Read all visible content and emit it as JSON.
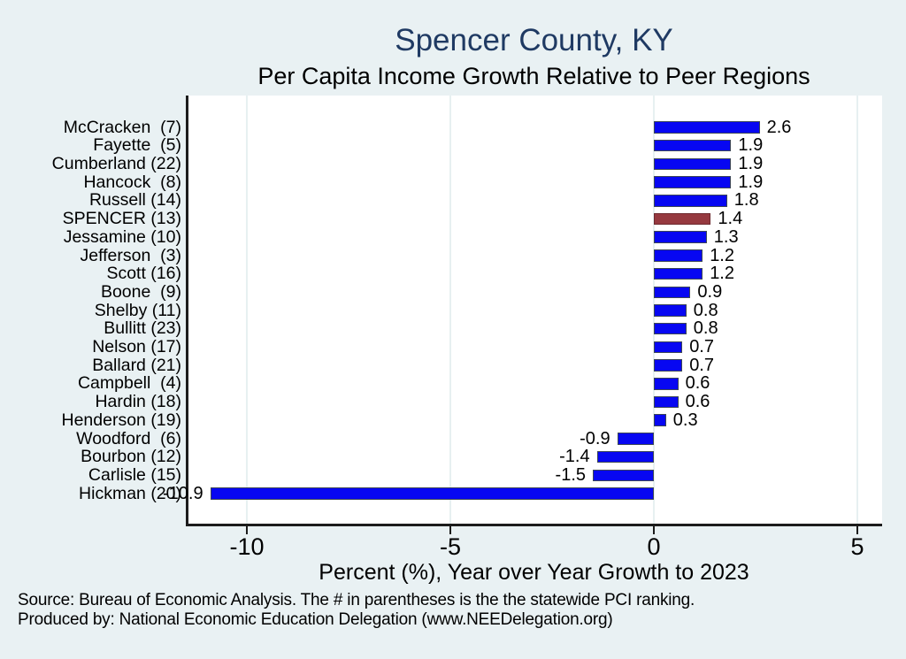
{
  "page": {
    "background_color": "#e9f1f3"
  },
  "header": {
    "title": "Spencer County, KY",
    "title_color": "#1f3a63",
    "subtitle": "Per Capita Income Growth Relative to Peer Regions"
  },
  "chart_data": {
    "type": "bar",
    "orientation": "horizontal",
    "title": "Spencer County, KY",
    "subtitle": "Per Capita Income Growth Relative to Peer Regions",
    "xlabel": "Percent (%), Year over Year Growth to 2023",
    "x_ticks": [
      -10,
      -5,
      0,
      5
    ],
    "xlim": [
      -11.4,
      5.6
    ],
    "grid": true,
    "plot_background": "#ffffff",
    "bar_color": "#0707f2",
    "bar_outline_color": "#3c4656",
    "highlight_color": "#96393f",
    "highlight_outline_color": "#6e2a2f",
    "highlight_index": 5,
    "categories": [
      "McCracken  (7)",
      "Fayette  (5)",
      "Cumberland (22)",
      "Hancock  (8)",
      "Russell (14)",
      "SPENCER (13)",
      "Jessamine (10)",
      "Jefferson  (3)",
      "Scott (16)",
      "Boone  (9)",
      "Shelby (11)",
      "Bullitt (23)",
      "Nelson (17)",
      "Ballard (21)",
      "Campbell  (4)",
      "Hardin (18)",
      "Henderson (19)",
      "Woodford  (6)",
      "Bourbon (12)",
      "Carlisle (15)",
      "Hickman (20)"
    ],
    "values": [
      2.6,
      1.9,
      1.9,
      1.9,
      1.8,
      1.4,
      1.3,
      1.2,
      1.2,
      0.9,
      0.8,
      0.8,
      0.7,
      0.7,
      0.6,
      0.6,
      0.3,
      -0.9,
      -1.4,
      -1.5,
      -10.9
    ],
    "value_labels": [
      "2.6",
      "1.9",
      "1.9",
      "1.9",
      "1.8",
      "1.4",
      "1.3",
      "1.2",
      "1.2",
      "0.9",
      "0.8",
      "0.8",
      "0.7",
      "0.7",
      "0.6",
      "0.6",
      "0.3",
      "-0.9",
      "-1.4",
      "-1.5",
      "-10.9"
    ]
  },
  "footer": {
    "line1": "Source: Bureau of Economic Analysis. The # in parentheses is the the statewide PCI ranking.",
    "line2": "Produced by: National Economic Education Delegation (www.NEEDelegation.org)"
  }
}
